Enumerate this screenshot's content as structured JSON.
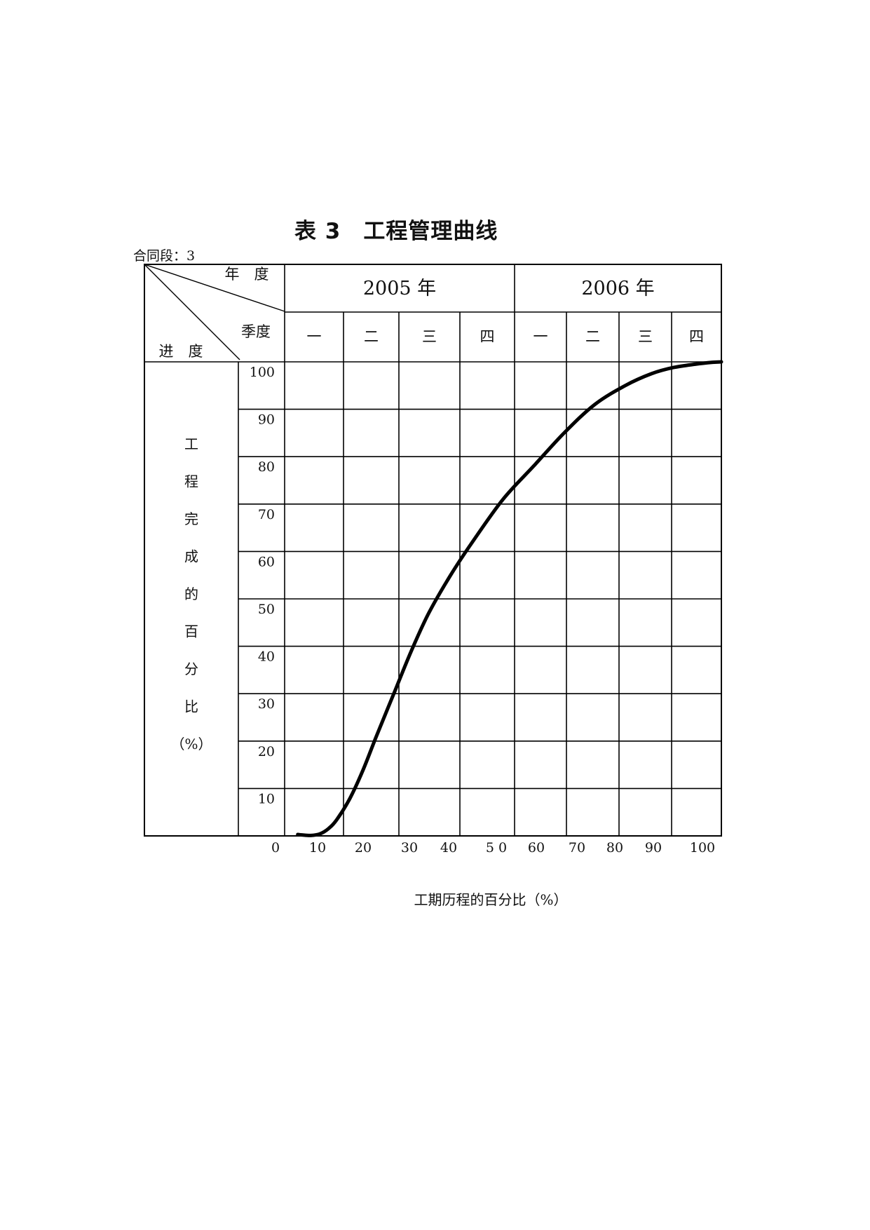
{
  "title": "表 3　工程管理曲线",
  "contract_label": "合同段：3",
  "header": {
    "diag_top": "年　度",
    "diag_mid": "季度",
    "diag_bottom": "进　度",
    "years": [
      "2005 年",
      "2006 年"
    ],
    "quarters": [
      "一",
      "二",
      "三",
      "四",
      "一",
      "二",
      "三",
      "四"
    ]
  },
  "chart_data": {
    "type": "line",
    "title": "表 3　工程管理曲线",
    "xlabel": "工期历程的百分比（%）",
    "ylabel": [
      "工",
      "程",
      "完",
      "成",
      "的",
      "百",
      "分",
      "比",
      "（%）"
    ],
    "x_tick_labels": [
      "0",
      "10",
      "20",
      "30",
      "40",
      "5 0",
      "60",
      "70",
      "80",
      "90",
      "100"
    ],
    "y_tick_labels": [
      "100",
      "90",
      "80",
      "70",
      "60",
      "50",
      "40",
      "30",
      "20",
      "10"
    ],
    "xlim": [
      0,
      100
    ],
    "ylim": [
      0,
      100
    ],
    "grid": true,
    "series": [
      {
        "x": [
          3,
          4,
          6,
          8,
          10,
          12,
          15,
          18,
          21,
          25,
          29,
          33,
          38,
          43,
          50,
          57,
          64,
          71,
          78,
          84,
          89,
          94,
          98,
          100
        ],
        "y": [
          0.3,
          0.2,
          0.1,
          0.4,
          1.5,
          3.5,
          8,
          14,
          21,
          30,
          39,
          47,
          55,
          62,
          71,
          78,
          85,
          91,
          95,
          97.5,
          98.8,
          99.5,
          99.9,
          100
        ]
      }
    ]
  }
}
